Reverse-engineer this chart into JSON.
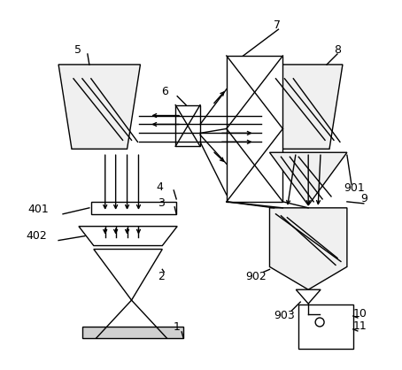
{
  "figsize": [
    4.54,
    4.18
  ],
  "dpi": 100,
  "lw": 1.0,
  "bg": "white"
}
